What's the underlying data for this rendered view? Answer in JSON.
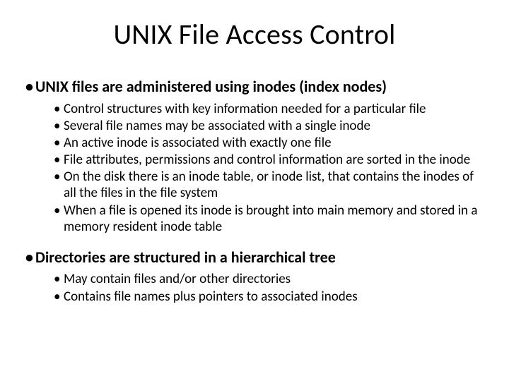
{
  "slide": {
    "title": "UNIX File Access Control",
    "sections": [
      {
        "heading": "UNIX files are administered using inodes (index nodes)",
        "items": [
          "Control structures with key information needed for a particular file",
          "Several file names may be associated with a single inode",
          "An active inode is associated with exactly one file",
          "File attributes, permissions and control information are sorted in the inode",
          "On the disk there is an inode table, or inode list, that contains the inodes of all the files in the file system",
          "When a file is opened its inode is brought into main memory and stored in a memory resident inode table"
        ]
      },
      {
        "heading": "Directories are structured in a hierarchical tree",
        "items": [
          "May contain files and/or other directories",
          "Contains file names plus pointers to associated inodes"
        ]
      }
    ]
  },
  "style": {
    "background_color": "#ffffff",
    "text_color": "#000000",
    "title_fontsize": 40,
    "lvl1_fontsize": 22,
    "lvl2_fontsize": 19,
    "font_family": "Calibri"
  }
}
